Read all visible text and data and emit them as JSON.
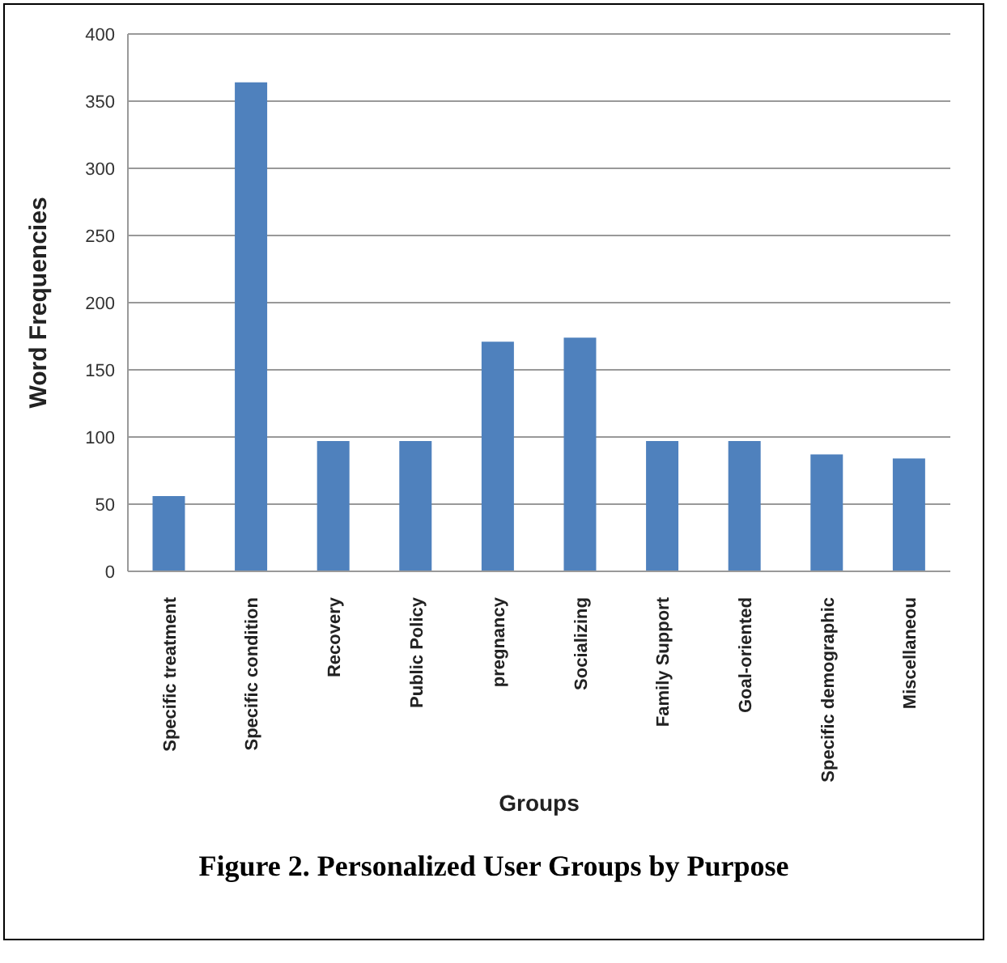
{
  "chart_data": {
    "type": "bar",
    "title": "Figure 2. Personalized User Groups by Purpose",
    "xlabel": "Groups",
    "ylabel": "Word Frequencies",
    "categories": [
      "Specific treatment",
      "Specific condition",
      "Recovery",
      "Public Policy",
      "pregnancy",
      "Socializing",
      "Family Support",
      "Goal-oriented",
      "Specific demographic",
      "Miscellaneou"
    ],
    "values": [
      56,
      364,
      97,
      97,
      171,
      174,
      97,
      97,
      87,
      84
    ],
    "color": "#4f81bd",
    "ylim": [
      0,
      400
    ],
    "yticks": [
      0,
      50,
      100,
      150,
      200,
      250,
      300,
      350,
      400
    ],
    "grid": "y"
  }
}
